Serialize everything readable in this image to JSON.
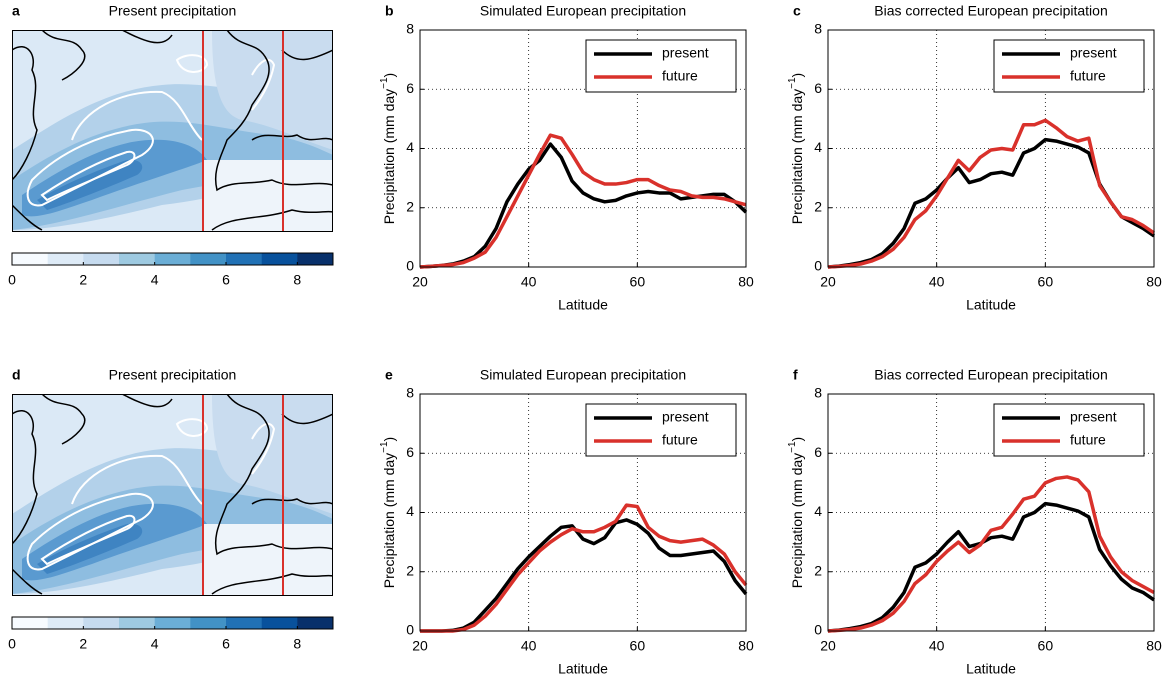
{
  "chart_data": [
    {
      "type": "map",
      "panel": "a",
      "title": "Present precipitation",
      "clim": [
        0,
        9
      ],
      "colorbar_ticks": [
        0,
        2,
        4,
        6,
        8
      ],
      "colors": [
        "#f7fbff",
        "#deebf7",
        "#c6dbef",
        "#9ecae1",
        "#6baed6",
        "#4292c6",
        "#2171b5",
        "#08519c",
        "#08306b"
      ]
    },
    {
      "type": "line",
      "panel": "b",
      "title": "Simulated European precipitation",
      "xlabel": "Latitude",
      "ylabel": [
        "Precipitation (mm day",
        "−1",
        ")"
      ],
      "x": [
        20,
        22,
        24,
        26,
        28,
        30,
        32,
        34,
        36,
        38,
        40,
        42,
        44,
        46,
        48,
        50,
        52,
        54,
        56,
        58,
        60,
        62,
        64,
        66,
        68,
        70,
        72,
        74,
        76,
        78,
        80
      ],
      "series": [
        {
          "name": "present",
          "color": "#000000",
          "values": [
            0,
            0.02,
            0.05,
            0.1,
            0.2,
            0.35,
            0.7,
            1.3,
            2.2,
            2.8,
            3.3,
            3.6,
            4.15,
            3.7,
            2.9,
            2.5,
            2.3,
            2.2,
            2.25,
            2.4,
            2.5,
            2.55,
            2.5,
            2.5,
            2.3,
            2.35,
            2.4,
            2.45,
            2.45,
            2.2,
            1.85
          ]
        },
        {
          "name": "future",
          "color": "#d9312b",
          "values": [
            0,
            0.02,
            0.05,
            0.08,
            0.15,
            0.3,
            0.5,
            1.0,
            1.7,
            2.4,
            3.1,
            3.8,
            4.45,
            4.35,
            3.8,
            3.2,
            2.95,
            2.8,
            2.8,
            2.85,
            2.95,
            2.95,
            2.75,
            2.6,
            2.55,
            2.4,
            2.35,
            2.35,
            2.3,
            2.2,
            2.1
          ]
        }
      ],
      "xlim": [
        20,
        80
      ],
      "xticks": [
        20,
        40,
        60,
        80
      ],
      "ylim": [
        0,
        8
      ],
      "yticks": [
        0,
        2,
        4,
        6,
        8
      ],
      "grid": true,
      "legend": "upper right"
    },
    {
      "type": "line",
      "panel": "c",
      "title": "Bias corrected European precipitation",
      "xlabel": "Latitude",
      "ylabel": [
        "Precipitation (mm day",
        "−1",
        ")"
      ],
      "x": [
        20,
        22,
        24,
        26,
        28,
        30,
        32,
        34,
        36,
        38,
        40,
        42,
        44,
        46,
        48,
        50,
        52,
        54,
        56,
        58,
        60,
        62,
        64,
        66,
        68,
        70,
        72,
        74,
        76,
        78,
        80
      ],
      "series": [
        {
          "name": "present",
          "color": "#000000",
          "values": [
            0,
            0.03,
            0.08,
            0.15,
            0.25,
            0.45,
            0.8,
            1.3,
            2.15,
            2.3,
            2.6,
            3.0,
            3.35,
            2.85,
            2.95,
            3.15,
            3.2,
            3.1,
            3.85,
            4.0,
            4.3,
            4.25,
            4.15,
            4.05,
            3.85,
            2.8,
            2.2,
            1.7,
            1.5,
            1.3,
            1.05
          ]
        },
        {
          "name": "future",
          "color": "#d9312b",
          "values": [
            0,
            0.02,
            0.05,
            0.1,
            0.2,
            0.35,
            0.6,
            1.0,
            1.6,
            1.9,
            2.4,
            3.0,
            3.6,
            3.25,
            3.7,
            3.95,
            4.0,
            3.95,
            4.8,
            4.8,
            4.95,
            4.7,
            4.4,
            4.25,
            4.35,
            2.75,
            2.2,
            1.7,
            1.6,
            1.4,
            1.15
          ]
        }
      ],
      "xlim": [
        20,
        80
      ],
      "xticks": [
        20,
        40,
        60,
        80
      ],
      "ylim": [
        0,
        8
      ],
      "yticks": [
        0,
        2,
        4,
        6,
        8
      ],
      "grid": true,
      "legend": "upper right"
    },
    {
      "type": "map",
      "panel": "d",
      "title": "Present precipitation",
      "clim": [
        0,
        9
      ],
      "colorbar_ticks": [
        0,
        2,
        4,
        6,
        8
      ],
      "colors": [
        "#f7fbff",
        "#deebf7",
        "#c6dbef",
        "#9ecae1",
        "#6baed6",
        "#4292c6",
        "#2171b5",
        "#08519c",
        "#08306b"
      ]
    },
    {
      "type": "line",
      "panel": "e",
      "title": "Simulated European precipitation",
      "xlabel": "Latitude",
      "ylabel": [
        "Precipitation (mm day",
        "−1",
        ")"
      ],
      "x": [
        20,
        22,
        24,
        26,
        28,
        30,
        32,
        34,
        36,
        38,
        40,
        42,
        44,
        46,
        48,
        50,
        52,
        54,
        56,
        58,
        60,
        62,
        64,
        66,
        68,
        70,
        72,
        74,
        76,
        78,
        80
      ],
      "series": [
        {
          "name": "present",
          "color": "#000000",
          "values": [
            0,
            0,
            0,
            0.02,
            0.1,
            0.3,
            0.7,
            1.1,
            1.6,
            2.1,
            2.5,
            2.85,
            3.2,
            3.5,
            3.55,
            3.1,
            2.95,
            3.15,
            3.65,
            3.75,
            3.6,
            3.3,
            2.8,
            2.55,
            2.55,
            2.6,
            2.65,
            2.7,
            2.35,
            1.7,
            1.25
          ]
        },
        {
          "name": "future",
          "color": "#d9312b",
          "values": [
            0,
            0,
            0,
            0,
            0.05,
            0.2,
            0.5,
            0.9,
            1.4,
            1.9,
            2.3,
            2.7,
            3.0,
            3.25,
            3.45,
            3.35,
            3.35,
            3.5,
            3.7,
            4.25,
            4.2,
            3.5,
            3.2,
            3.05,
            3.0,
            3.05,
            3.1,
            2.9,
            2.6,
            2.0,
            1.55
          ]
        }
      ],
      "xlim": [
        20,
        80
      ],
      "xticks": [
        20,
        40,
        60,
        80
      ],
      "ylim": [
        0,
        8
      ],
      "yticks": [
        0,
        2,
        4,
        6,
        8
      ],
      "grid": true,
      "legend": "upper right"
    },
    {
      "type": "line",
      "panel": "f",
      "title": "Bias corrected European precipitation",
      "xlabel": "Latitude",
      "ylabel": [
        "Precipitation (mm day",
        "−1",
        ")"
      ],
      "x": [
        20,
        22,
        24,
        26,
        28,
        30,
        32,
        34,
        36,
        38,
        40,
        42,
        44,
        46,
        48,
        50,
        52,
        54,
        56,
        58,
        60,
        62,
        64,
        66,
        68,
        70,
        72,
        74,
        76,
        78,
        80
      ],
      "series": [
        {
          "name": "present",
          "color": "#000000",
          "values": [
            0,
            0.03,
            0.08,
            0.15,
            0.25,
            0.45,
            0.8,
            1.3,
            2.15,
            2.3,
            2.6,
            3.0,
            3.35,
            2.85,
            2.95,
            3.15,
            3.2,
            3.1,
            3.85,
            4.0,
            4.3,
            4.25,
            4.15,
            4.05,
            3.85,
            2.75,
            2.2,
            1.75,
            1.45,
            1.3,
            1.05
          ]
        },
        {
          "name": "future",
          "color": "#d9312b",
          "values": [
            0,
            0.02,
            0.05,
            0.1,
            0.2,
            0.35,
            0.6,
            1.0,
            1.6,
            1.9,
            2.35,
            2.7,
            3.0,
            2.65,
            2.9,
            3.4,
            3.5,
            3.95,
            4.45,
            4.55,
            5.0,
            5.15,
            5.2,
            5.1,
            4.7,
            3.2,
            2.5,
            2.0,
            1.7,
            1.5,
            1.3
          ]
        }
      ],
      "xlim": [
        20,
        80
      ],
      "xticks": [
        20,
        40,
        60,
        80
      ],
      "ylim": [
        0,
        8
      ],
      "yticks": [
        0,
        2,
        4,
        6,
        8
      ],
      "grid": true,
      "legend": "upper right"
    }
  ]
}
